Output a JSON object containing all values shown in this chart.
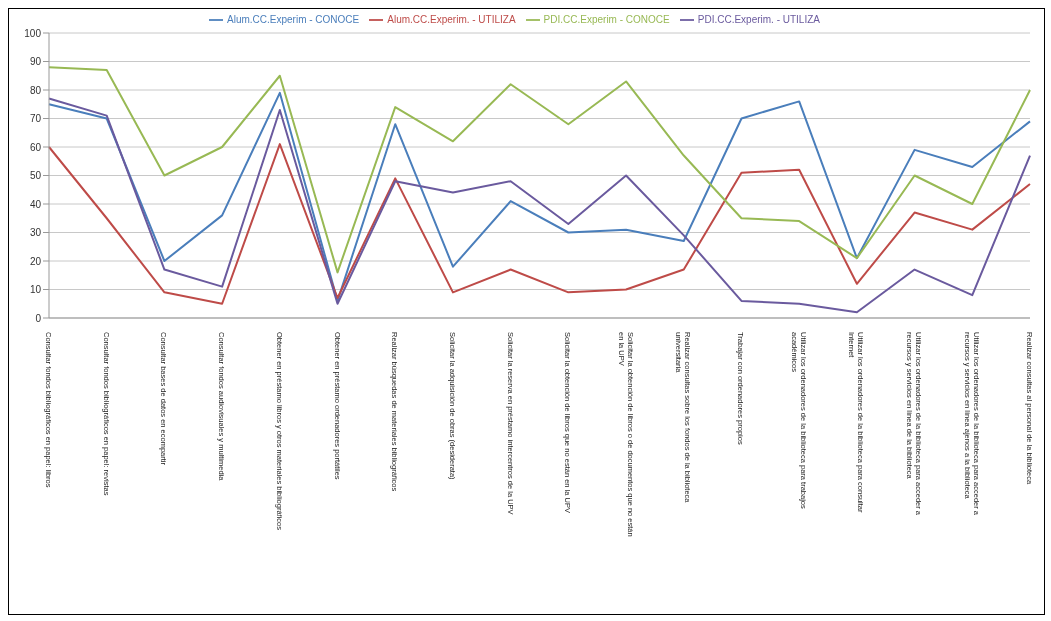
{
  "chart_data": {
    "type": "line",
    "categories": [
      "Consultar fondos bibliográficos en papel: libros",
      "Consultar fondos bibliográficos en papel: revistas",
      "Consultar bases de datos en ecompartir",
      "Consultar fondos audiovisuales y multimedia",
      "Obtener en préstamo libros y otros materiales bibliográficos",
      "Obtener en préstamo ordenadores portátiles",
      "Realizar búsquedas de materiales bibliográficos",
      "Solicitar la adquisición de obras (desiderata)",
      "Solicitar la reserva en préstamo intercentros de la UPV",
      "Solicitar la obtención de libros que no están en la UPV",
      "Solicitar la obtención de libros o de documentos que no están en la UPV",
      "Realizar consultas sobre los fondos de la biblioteca universitaria",
      "Trabajar con ordenadores propios",
      "Utilizar los ordenadores de la biblioteca para trabajos académicos",
      "Utilizar los ordenadores de la biblioteca para consultar Internet",
      "Utilizar los ordenadores de la biblioteca para acceder a recursos y servicios en línea de la biblioteca",
      "Utilizar los ordenadores de la biblioteca para acceder a recursos y servicios en línea ajenos a la biblioteca",
      "Realizar consultas al personal de la biblioteca"
    ],
    "series": [
      {
        "name": "Alum.CC.Experim - CONOCE",
        "color": "#4a7ebb",
        "values": [
          75,
          70,
          20,
          36,
          79,
          6,
          68,
          18,
          41,
          30,
          31,
          27,
          70,
          76,
          21,
          59,
          53,
          69
        ]
      },
      {
        "name": "Alum.CC.Experim. - UTILIZA",
        "color": "#be4b48",
        "values": [
          60,
          35,
          9,
          5,
          61,
          7,
          49,
          9,
          17,
          9,
          10,
          17,
          51,
          52,
          12,
          37,
          31,
          47
        ]
      },
      {
        "name": "PDI.CC.Experim - CONOCE",
        "color": "#98b954",
        "values": [
          88,
          87,
          50,
          60,
          85,
          16,
          74,
          62,
          82,
          68,
          83,
          57,
          35,
          34,
          21,
          50,
          40,
          80
        ]
      },
      {
        "name": "PDI.CC.Experim. - UTILIZA",
        "color": "#6a5a9e",
        "values": [
          77,
          71,
          17,
          11,
          73,
          5,
          48,
          44,
          48,
          33,
          50,
          29,
          6,
          5,
          2,
          17,
          8,
          57
        ]
      }
    ],
    "ylim": [
      0,
      100
    ],
    "yticks": [
      0,
      10,
      20,
      30,
      40,
      50,
      60,
      70,
      80,
      90,
      100
    ],
    "grid": "y",
    "legend": "top",
    "marker": "none",
    "line_style": "solid"
  }
}
